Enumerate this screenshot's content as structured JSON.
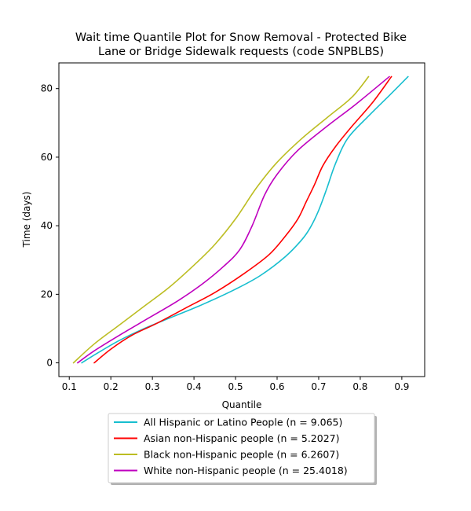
{
  "chart_data": {
    "type": "line",
    "title_lines": [
      "Wait time Quantile Plot for Snow Removal - Protected Bike",
      "Lane or Bridge Sidewalk  requests (code SNPBLBS)"
    ],
    "xlabel": "Quantile",
    "ylabel": "Time (days)",
    "xlim": [
      0.075,
      0.955
    ],
    "ylim": [
      -4,
      87.5
    ],
    "xticks": [
      0.1,
      0.2,
      0.3,
      0.4,
      0.5,
      0.6,
      0.7,
      0.8,
      0.9
    ],
    "xtick_labels": [
      "0.1",
      "0.2",
      "0.3",
      "0.4",
      "0.5",
      "0.6",
      "0.7",
      "0.8",
      "0.9"
    ],
    "yticks": [
      0,
      20,
      40,
      60,
      80
    ],
    "ytick_labels": [
      "0",
      "20",
      "40",
      "60",
      "80"
    ],
    "legend_position": "below",
    "series": [
      {
        "name": "All Hispanic or Latino People (n = 9.065)",
        "color": "#17becf",
        "x": [
          0.13,
          0.17,
          0.22,
          0.28,
          0.35,
          0.42,
          0.5,
          0.56,
          0.62,
          0.66,
          0.68,
          0.7,
          0.72,
          0.74,
          0.77,
          0.82,
          0.87,
          0.915
        ],
        "y": [
          0,
          3,
          6.5,
          10,
          13.5,
          17,
          21.5,
          25.5,
          31,
          36,
          39.5,
          44.5,
          51,
          58,
          65.5,
          72,
          78,
          83.5
        ]
      },
      {
        "name": "Asian non-Hispanic people (n = 5.2027)",
        "color": "#ff0000",
        "x": [
          0.16,
          0.2,
          0.25,
          0.31,
          0.38,
          0.45,
          0.52,
          0.58,
          0.62,
          0.65,
          0.67,
          0.69,
          0.71,
          0.74,
          0.78,
          0.83,
          0.875
        ],
        "y": [
          0,
          4,
          8,
          11.5,
          16,
          20.5,
          26,
          31.5,
          37,
          42,
          47,
          52,
          57.5,
          63,
          69,
          76,
          83.5
        ]
      },
      {
        "name": "Black non-Hispanic people (n = 6.2607)",
        "color": "#bcbd22",
        "x": [
          0.11,
          0.16,
          0.22,
          0.28,
          0.34,
          0.4,
          0.45,
          0.5,
          0.55,
          0.6,
          0.66,
          0.72,
          0.78,
          0.82
        ],
        "y": [
          0,
          5.5,
          11,
          16.5,
          22,
          28.5,
          34.5,
          42,
          51,
          58.5,
          65.5,
          71.5,
          77.5,
          83.5
        ]
      },
      {
        "name": "White non-Hispanic people (n = 25.4018)",
        "color": "#bf00bf",
        "x": [
          0.12,
          0.16,
          0.22,
          0.29,
          0.36,
          0.42,
          0.47,
          0.51,
          0.54,
          0.57,
          0.6,
          0.65,
          0.72,
          0.79,
          0.87
        ],
        "y": [
          0,
          3.5,
          8,
          13,
          18,
          23,
          28,
          33,
          40,
          49,
          55,
          62,
          69,
          75.5,
          83.5
        ]
      }
    ]
  }
}
